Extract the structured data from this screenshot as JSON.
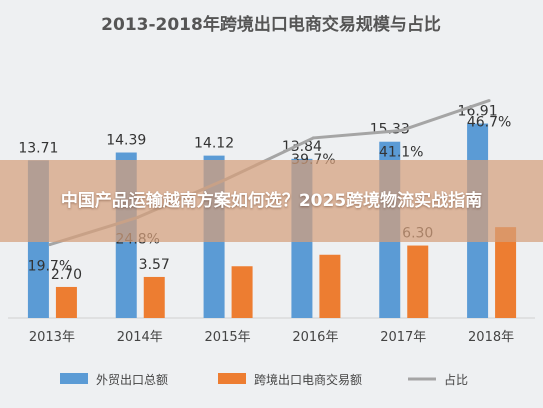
{
  "overlay": {
    "headline": "中国产品运输越南方案如何选？2025跨境物流实战指南"
  },
  "colors": {
    "export_total": "#5b9bd5",
    "cross_border": "#ed7d31",
    "share": "#a5a5a5",
    "overlay_bg": "#d6a07c"
  },
  "chart_data": {
    "type": "bar",
    "title": "2013-2018年跨境出口电商交易规模与占比",
    "categories": [
      "2013年",
      "2014年",
      "2015年",
      "2016年",
      "2017年",
      "2018年"
    ],
    "series": [
      {
        "name": "外贸出口总额",
        "type": "bar",
        "values": [
          13.71,
          14.39,
          14.12,
          13.84,
          15.33,
          16.91
        ],
        "labels": [
          "13.71",
          "14.39",
          "14.12",
          "13.84",
          "15.33",
          "16.91"
        ]
      },
      {
        "name": "跨境出口电商交易额",
        "type": "bar",
        "values": [
          2.7,
          3.57,
          4.5,
          5.5,
          6.3,
          7.9
        ],
        "labels": [
          "2.70",
          "3.57",
          "",
          "",
          "6.30",
          ""
        ]
      },
      {
        "name": "占比",
        "type": "line",
        "values": [
          19.7,
          24.8,
          31.9,
          39.7,
          41.1,
          46.7
        ],
        "labels": [
          "19.7%",
          "24.8%",
          "",
          "39.7%",
          "41.1%",
          "46.7%"
        ]
      }
    ],
    "legend": "bottom",
    "grid": false
  }
}
